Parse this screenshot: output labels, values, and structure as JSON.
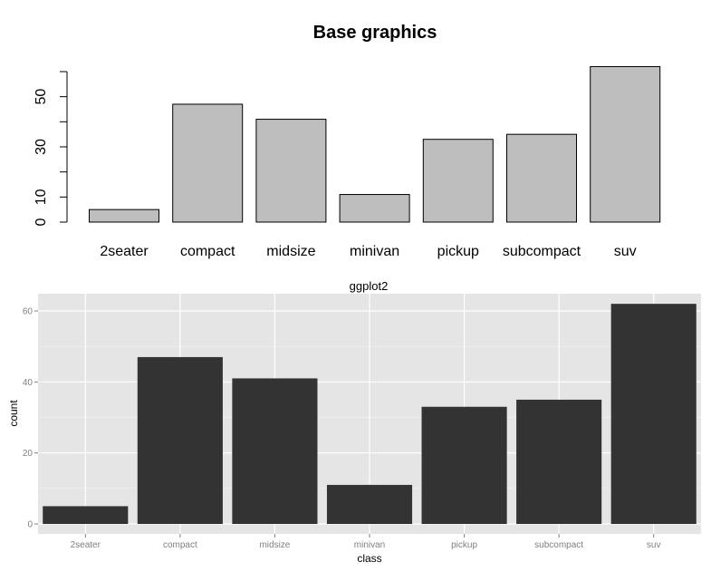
{
  "chart_data": [
    {
      "type": "bar",
      "title": "Base graphics",
      "categories": [
        "2seater",
        "compact",
        "midsize",
        "minivan",
        "pickup",
        "subcompact",
        "suv"
      ],
      "values": [
        5,
        47,
        41,
        11,
        33,
        35,
        62
      ],
      "xlabel": "",
      "ylabel": "",
      "ylim": [
        0,
        60
      ],
      "y_ticks": [
        0,
        10,
        20,
        30,
        40,
        50,
        60
      ],
      "y_tick_labels": [
        "0",
        "10",
        "30",
        "50"
      ],
      "grid": false,
      "bar_fill": "#bebebe",
      "bar_stroke": "#000000"
    },
    {
      "type": "bar",
      "title": "ggplot2",
      "categories": [
        "2seater",
        "compact",
        "midsize",
        "minivan",
        "pickup",
        "subcompact",
        "suv"
      ],
      "values": [
        5,
        47,
        41,
        11,
        33,
        35,
        62
      ],
      "xlabel": "class",
      "ylabel": "count",
      "y_ticks": [
        0,
        20,
        40,
        60
      ],
      "grid": true,
      "panel_color": "#e5e5e5",
      "grid_color": "#ffffff",
      "bar_fill": "#333333"
    }
  ]
}
